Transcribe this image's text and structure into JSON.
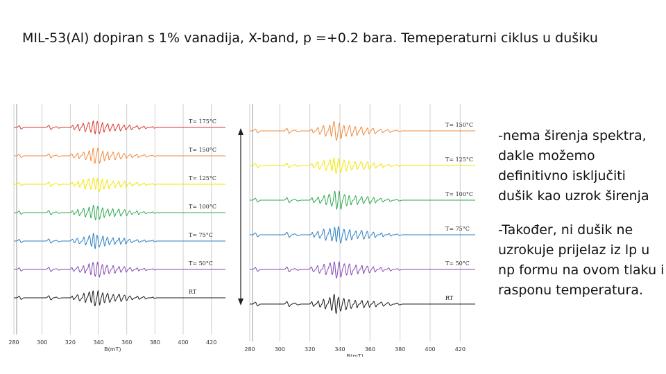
{
  "slide": {
    "title": "MIL-53(Al) dopiran s 1% vanadija, X-band, p =+0.2 bara. Temeperaturni ciklus u dušiku",
    "notes": [
      "-nema širenja spektra, dakle možemo definitivno isključiti dušik kao uzrok širenja",
      "-Također, ni dušik ne uzrokuje prijelaz iz lp u np formu na ovom tlaku i rasponu temperatura."
    ]
  },
  "chart_data": [
    {
      "type": "line",
      "xlabel": "B(mT)",
      "xticks": [
        280,
        300,
        320,
        340,
        360,
        380,
        400,
        420
      ],
      "xlim": [
        280,
        430
      ],
      "grid": "vertical",
      "series": [
        {
          "name": "T= 175°C",
          "color": "#d9362b"
        },
        {
          "name": "T= 150°C",
          "color": "#ee8a3d"
        },
        {
          "name": "T= 125°C",
          "color": "#f2e600"
        },
        {
          "name": "T= 100°C",
          "color": "#2ea84f"
        },
        {
          "name": "T= 75°C",
          "color": "#2b7fc2"
        },
        {
          "name": "T= 50°C",
          "color": "#8447b3"
        },
        {
          "name": "RT",
          "color": "#1a1a1a"
        }
      ]
    },
    {
      "type": "line",
      "xlabel": "B(mT)",
      "xticks": [
        280,
        300,
        320,
        340,
        360,
        380,
        400,
        420
      ],
      "xlim": [
        280,
        430
      ],
      "grid": "vertical",
      "series": [
        {
          "name": "T= 150°C",
          "color": "#ee8a3d"
        },
        {
          "name": "T= 125°C",
          "color": "#f2e600"
        },
        {
          "name": "T= 100°C",
          "color": "#2ea84f"
        },
        {
          "name": "T= 75°C",
          "color": "#2b7fc2"
        },
        {
          "name": "T= 50°C",
          "color": "#8447b3"
        },
        {
          "name": "RT",
          "color": "#1a1a1a"
        }
      ]
    }
  ]
}
